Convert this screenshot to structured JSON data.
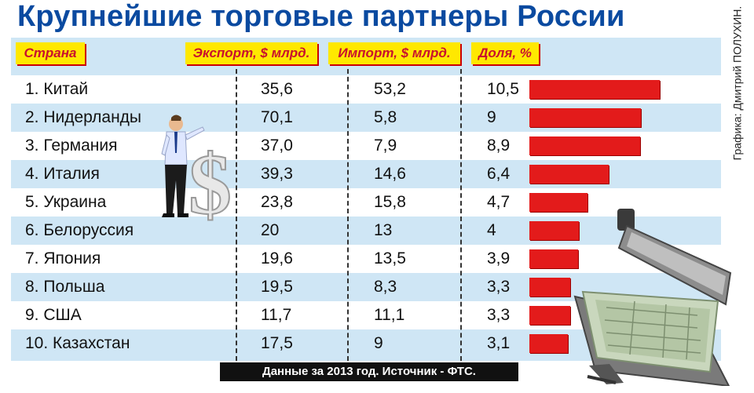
{
  "title": "Крупнейшие торговые партнеры России",
  "credit": "Графика: Дмитрий ПОЛУХИН.",
  "headers": {
    "country": "Страна",
    "export": "Экспорт, $ млрд.",
    "import": "Импорт, $ млрд.",
    "share": "Доля, %"
  },
  "footer": "Данные за 2013 год. Источник - ФТС.",
  "colors": {
    "title": "#0a4aa0",
    "header_bg": "#ffe800",
    "header_text": "#c8102e",
    "bar": "#e31b1b",
    "row_alt": "#cfe6f5"
  },
  "chart_data": {
    "type": "table",
    "columns": [
      "Страна",
      "Экспорт, $ млрд.",
      "Импорт, $ млрд.",
      "Доля, %"
    ],
    "rows": [
      {
        "country": "1. Китай",
        "export": "35,6",
        "import": "53,2",
        "share": "10,5",
        "share_value": 10.5
      },
      {
        "country": "2. Нидерланды",
        "export": "70,1",
        "import": "5,8",
        "share": "9",
        "share_value": 9
      },
      {
        "country": "3. Германия",
        "export": "37,0",
        "import": "7,9",
        "share": "8,9",
        "share_value": 8.9
      },
      {
        "country": "4. Италия",
        "export": "39,3",
        "import": "14,6",
        "share": "6,4",
        "share_value": 6.4
      },
      {
        "country": "5. Украина",
        "export": "23,8",
        "import": "15,8",
        "share": "4,7",
        "share_value": 4.7
      },
      {
        "country": "6. Белоруссия",
        "export": "20",
        "import": "13",
        "share": "4",
        "share_value": 4
      },
      {
        "country": "7. Япония",
        "export": "19,6",
        "import": "13,5",
        "share": "3,9",
        "share_value": 3.9
      },
      {
        "country": "8. Польша",
        "export": "19,5",
        "import": "8,3",
        "share": "3,3",
        "share_value": 3.3
      },
      {
        "country": "9. США",
        "export": "11,7",
        "import": "11,1",
        "share": "3,3",
        "share_value": 3.3
      },
      {
        "country": "10. Казахстан",
        "export": "17,5",
        "import": "9",
        "share": "3,1",
        "share_value": 3.1
      }
    ]
  }
}
